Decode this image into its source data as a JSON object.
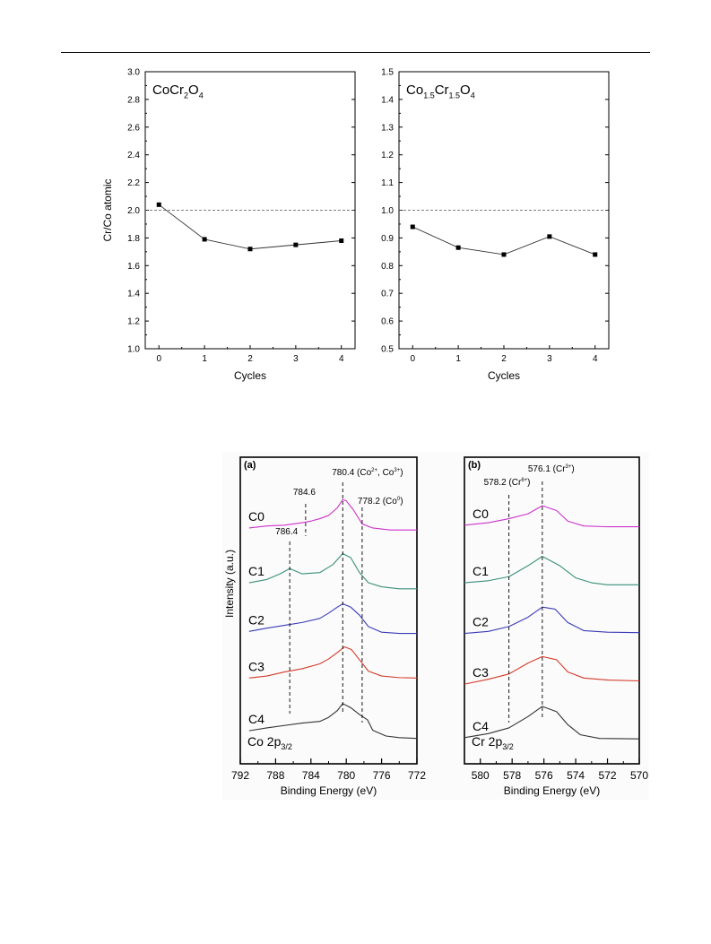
{
  "chart_data": [
    {
      "id": "top-left",
      "type": "line",
      "title": "CoCr2O4",
      "title_parts": [
        {
          "t": "CoCr",
          "sub": false
        },
        {
          "t": "2",
          "sub": true
        },
        {
          "t": "O",
          "sub": false
        },
        {
          "t": "4",
          "sub": true
        }
      ],
      "xlabel": "Cycles",
      "ylabel": "Cr/Co atomic",
      "xlim": [
        -0.3,
        4.3
      ],
      "ylim": [
        1.0,
        3.0
      ],
      "xticks": [
        "0",
        "1",
        "2",
        "3",
        "4"
      ],
      "yticks": [
        "1.0",
        "1.2",
        "1.4",
        "1.6",
        "1.8",
        "2.0",
        "2.2",
        "2.4",
        "2.6",
        "2.8",
        "3.0"
      ],
      "reference_line": 2.0,
      "x": [
        0,
        1,
        2,
        3,
        4
      ],
      "y": [
        2.04,
        1.79,
        1.72,
        1.75,
        1.78
      ]
    },
    {
      "id": "top-right",
      "type": "line",
      "title": "Co1.5Cr1.5O4",
      "title_parts": [
        {
          "t": "Co",
          "sub": false
        },
        {
          "t": "1.5",
          "sub": true
        },
        {
          "t": "Cr",
          "sub": false
        },
        {
          "t": "1.5",
          "sub": true
        },
        {
          "t": "O",
          "sub": false
        },
        {
          "t": "4",
          "sub": true
        }
      ],
      "xlabel": "Cycles",
      "ylabel": "",
      "xlim": [
        -0.3,
        4.3
      ],
      "ylim": [
        0.5,
        1.5
      ],
      "xticks": [
        "0",
        "1",
        "2",
        "3",
        "4"
      ],
      "yticks": [
        "0.5",
        "0.6",
        "0.7",
        "0.8",
        "0.9",
        "1.0",
        "1.1",
        "1.2",
        "1.3",
        "1.4",
        "1.5"
      ],
      "reference_line": 1.0,
      "x": [
        0,
        1,
        2,
        3,
        4
      ],
      "y": [
        0.94,
        0.865,
        0.84,
        0.905,
        0.84
      ]
    },
    {
      "id": "panel-a",
      "type": "line",
      "panel_label": "(a)",
      "xlabel": "Binding Energy (eV)",
      "ylabel": "Intensity (a.u.)",
      "xlim": [
        792,
        772
      ],
      "xticks": [
        "792",
        "788",
        "784",
        "780",
        "776",
        "772"
      ],
      "region_label_parts": [
        {
          "t": "Co 2p",
          "sub": false
        },
        {
          "t": "3/2",
          "sub": true
        }
      ],
      "series": [
        {
          "name": "C0",
          "color": "#cc33cc",
          "x": [
            791,
            789,
            787,
            785,
            784,
            783,
            782,
            781,
            780.4,
            780,
            779.2,
            778.2,
            777,
            775,
            773,
            772
          ],
          "y": [
            5.55,
            5.6,
            5.62,
            5.68,
            5.72,
            5.78,
            5.86,
            6.05,
            6.25,
            6.22,
            6.0,
            5.65,
            5.55,
            5.5,
            5.5,
            5.5
          ]
        },
        {
          "name": "C1",
          "color": "#3a8f7a",
          "x": [
            791,
            789,
            787.5,
            786.4,
            785,
            783,
            781.5,
            780.4,
            779.5,
            778.5,
            777.5,
            776,
            774,
            772
          ],
          "y": [
            4.2,
            4.28,
            4.42,
            4.55,
            4.42,
            4.45,
            4.65,
            4.92,
            4.82,
            4.45,
            4.2,
            4.1,
            4.05,
            4.05
          ]
        },
        {
          "name": "C2",
          "color": "#3a3ab8",
          "x": [
            791,
            789,
            787,
            785,
            783,
            782,
            781,
            780.4,
            779.5,
            778.5,
            777.5,
            776,
            774,
            772
          ],
          "y": [
            3.0,
            3.08,
            3.15,
            3.22,
            3.32,
            3.45,
            3.6,
            3.68,
            3.6,
            3.4,
            3.12,
            2.98,
            2.95,
            2.95
          ]
        },
        {
          "name": "C3",
          "color": "#d43a2a",
          "x": [
            791,
            789,
            787,
            785,
            783,
            782,
            781,
            780.2,
            779.4,
            778.5,
            777.5,
            776,
            774,
            772
          ],
          "y": [
            1.85,
            1.9,
            2.0,
            2.08,
            2.2,
            2.32,
            2.48,
            2.62,
            2.55,
            2.3,
            2.02,
            1.9,
            1.86,
            1.85
          ]
        },
        {
          "name": "C4",
          "color": "#333333",
          "x": [
            791,
            789,
            787,
            785,
            783,
            782,
            781,
            780.4,
            779.5,
            778.5,
            777.6,
            777,
            775.5,
            774,
            772
          ],
          "y": [
            0.55,
            0.62,
            0.68,
            0.74,
            0.78,
            0.88,
            1.05,
            1.22,
            1.12,
            0.95,
            0.82,
            0.56,
            0.42,
            0.38,
            0.36
          ]
        }
      ],
      "markers": [
        {
          "x": 786.4,
          "label": "786.4",
          "label_parts": [
            {
              "t": "786.4",
              "sup": false
            }
          ]
        },
        {
          "x": 784.6,
          "label": "784.6",
          "label_parts": [
            {
              "t": "784.6",
              "sup": false
            }
          ]
        },
        {
          "x": 780.4,
          "label": "780.4 (Co2+, Co3+)",
          "label_parts": [
            {
              "t": "780.4 (Co",
              "sup": false
            },
            {
              "t": "2+",
              "sup": true
            },
            {
              "t": ", Co",
              "sup": false
            },
            {
              "t": "3+",
              "sup": true
            },
            {
              "t": ")",
              "sup": false
            }
          ]
        },
        {
          "x": 778.2,
          "label": "778.2 (Co0)",
          "label_parts": [
            {
              "t": "778.2 (Co",
              "sup": false
            },
            {
              "t": "0",
              "sup": true
            },
            {
              "t": ")",
              "sup": false
            }
          ]
        }
      ]
    },
    {
      "id": "panel-b",
      "type": "line",
      "panel_label": "(b)",
      "xlabel": "Binding Energy (eV)",
      "xlim": [
        581,
        570
      ],
      "xticks": [
        "580",
        "578",
        "576",
        "574",
        "572",
        "570"
      ],
      "region_label_parts": [
        {
          "t": "Cr 2p",
          "sub": false
        },
        {
          "t": "3/2",
          "sub": true
        }
      ],
      "series": [
        {
          "name": "C0",
          "color": "#cc33cc",
          "x": [
            581,
            579.5,
            578.2,
            577,
            576.1,
            575.2,
            574.5,
            573.5,
            572,
            570
          ],
          "y": [
            5.62,
            5.68,
            5.78,
            5.9,
            6.1,
            5.98,
            5.72,
            5.6,
            5.58,
            5.58
          ]
        },
        {
          "name": "C1",
          "color": "#3a8f7a",
          "x": [
            581,
            579.5,
            578.2,
            577,
            576.1,
            575,
            574,
            573,
            572,
            570
          ],
          "y": [
            4.2,
            4.25,
            4.35,
            4.62,
            4.85,
            4.62,
            4.32,
            4.2,
            4.15,
            4.15
          ]
        },
        {
          "name": "C2",
          "color": "#3a3ab8",
          "x": [
            581,
            579.5,
            578.2,
            577,
            576.1,
            575.3,
            574.5,
            573.5,
            572,
            570
          ],
          "y": [
            2.95,
            3.0,
            3.12,
            3.35,
            3.6,
            3.55,
            3.22,
            3.02,
            2.98,
            2.97
          ]
        },
        {
          "name": "C3",
          "color": "#d43a2a",
          "x": [
            581,
            579.5,
            578.2,
            577,
            576.1,
            575.2,
            574.5,
            573.5,
            572,
            570
          ],
          "y": [
            1.7,
            1.82,
            1.95,
            2.22,
            2.38,
            2.3,
            2.0,
            1.85,
            1.8,
            1.78
          ]
        },
        {
          "name": "C4",
          "color": "#333333",
          "x": [
            581,
            579.5,
            578.2,
            577,
            576.1,
            575.2,
            574.5,
            573.7,
            572.5,
            570
          ],
          "y": [
            0.38,
            0.48,
            0.62,
            0.9,
            1.15,
            1.02,
            0.7,
            0.45,
            0.36,
            0.35
          ]
        }
      ],
      "markers": [
        {
          "x": 578.2,
          "label": "578.2 (Cr6+)",
          "label_parts": [
            {
              "t": "578.2 (Cr",
              "sup": false
            },
            {
              "t": "6+",
              "sup": true
            },
            {
              "t": ")",
              "sup": false
            }
          ]
        },
        {
          "x": 576.1,
          "label": "576.1 (Cr3+)",
          "label_parts": [
            {
              "t": "576.1 (Cr",
              "sup": false
            },
            {
              "t": "3+",
              "sup": true
            },
            {
              "t": ")",
              "sup": false
            }
          ]
        }
      ]
    }
  ]
}
